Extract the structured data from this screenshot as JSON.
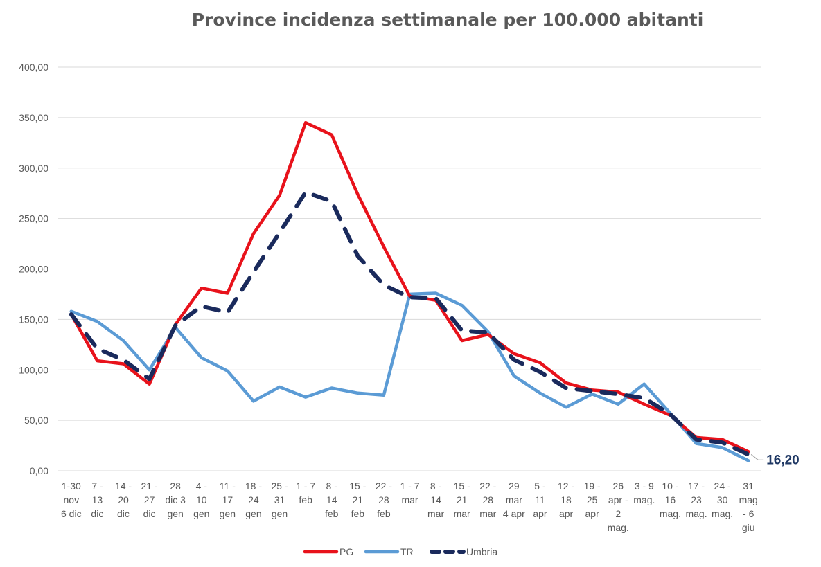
{
  "chart_data": {
    "type": "line",
    "title": "Province incidenza settimanale per 100.000 abitanti",
    "xlabel": "",
    "ylabel": "",
    "ylim": [
      0,
      400
    ],
    "yticks": [
      "0,00",
      "50,00",
      "100,00",
      "150,00",
      "200,00",
      "250,00",
      "300,00",
      "350,00",
      "400,00"
    ],
    "grid": true,
    "legend_position": "bottom",
    "categories": [
      "1-30 nov 6 dic",
      "7 - 13 dic",
      "14 - 20 dic",
      "21 - 27 dic",
      "28 dic 3 gen",
      "4 - 10 gen",
      "11 - 17 gen",
      "18 - 24 gen",
      "25 - 31 gen",
      "1 - 7 feb",
      "8 - 14 feb",
      "15 - 21 feb",
      "22 - 28 feb",
      "1 - 7 mar",
      "8 - 14 mar",
      "15 - 21 mar",
      "22 - 28 mar",
      "29 mar 4 apr",
      "5 - 11 apr",
      "12 - 18 apr",
      "19 - 25 apr",
      "26 apr - 2 mag.",
      "3 - 9 mag.",
      "10 - 16 mag.",
      "17 - 23 mag.",
      "24 - 30 mag.",
      "31 mag - 6 giu"
    ],
    "category_lines": [
      [
        "1-30",
        "nov",
        "6 dic"
      ],
      [
        "7 -",
        "13",
        "dic"
      ],
      [
        "14 -",
        "20",
        "dic"
      ],
      [
        "21 -",
        "27",
        "dic"
      ],
      [
        "28",
        "dic 3",
        "gen"
      ],
      [
        "4 -",
        "10",
        "gen"
      ],
      [
        "11 -",
        "17",
        "gen"
      ],
      [
        "18 -",
        "24",
        "gen"
      ],
      [
        "25 -",
        "31",
        "gen"
      ],
      [
        "1 - 7",
        "feb"
      ],
      [
        "8 -",
        "14",
        "feb"
      ],
      [
        "15 -",
        "21",
        "feb"
      ],
      [
        "22 -",
        "28",
        "feb"
      ],
      [
        "1 - 7",
        "mar"
      ],
      [
        "8 -",
        "14",
        "mar"
      ],
      [
        "15 -",
        "21",
        "mar"
      ],
      [
        "22 -",
        "28",
        "mar"
      ],
      [
        "29",
        "mar",
        "4 apr"
      ],
      [
        "5 -",
        "11",
        "apr"
      ],
      [
        "12 -",
        "18",
        "apr"
      ],
      [
        "19 -",
        "25",
        "apr"
      ],
      [
        "26",
        "apr -",
        "2",
        "mag."
      ],
      [
        "3 - 9",
        "mag."
      ],
      [
        "10 -",
        "16",
        "mag."
      ],
      [
        "17 -",
        "23",
        "mag."
      ],
      [
        "24 -",
        "30",
        "mag."
      ],
      [
        "31",
        "mag",
        "- 6",
        "giu"
      ]
    ],
    "series": [
      {
        "name": "PG",
        "color": "#e8121b",
        "style": "solid",
        "values": [
          155,
          109,
          106,
          86,
          145,
          181,
          176,
          235,
          273,
          345,
          333,
          274,
          222,
          173,
          169,
          129,
          135,
          116,
          107,
          87,
          80,
          78,
          66,
          55,
          33,
          31,
          19
        ]
      },
      {
        "name": "TR",
        "color": "#5b9bd5",
        "style": "solid",
        "values": [
          158,
          148,
          129,
          100,
          142,
          112,
          99,
          69,
          83,
          73,
          82,
          77,
          75,
          175,
          176,
          164,
          138,
          94,
          77,
          63,
          76,
          66,
          86,
          57,
          27,
          23,
          10
        ]
      },
      {
        "name": "Umbria",
        "color": "#1a2a5c",
        "style": "dashed",
        "values": [
          155,
          121,
          110,
          91,
          144,
          163,
          157,
          197,
          236,
          276,
          267,
          213,
          184,
          172,
          171,
          139,
          137,
          110,
          98,
          82,
          79,
          76,
          72,
          56,
          31,
          28,
          16.2
        ]
      }
    ],
    "annotations": [
      {
        "text": "16,20",
        "series": "Umbria",
        "point": "last"
      }
    ]
  }
}
